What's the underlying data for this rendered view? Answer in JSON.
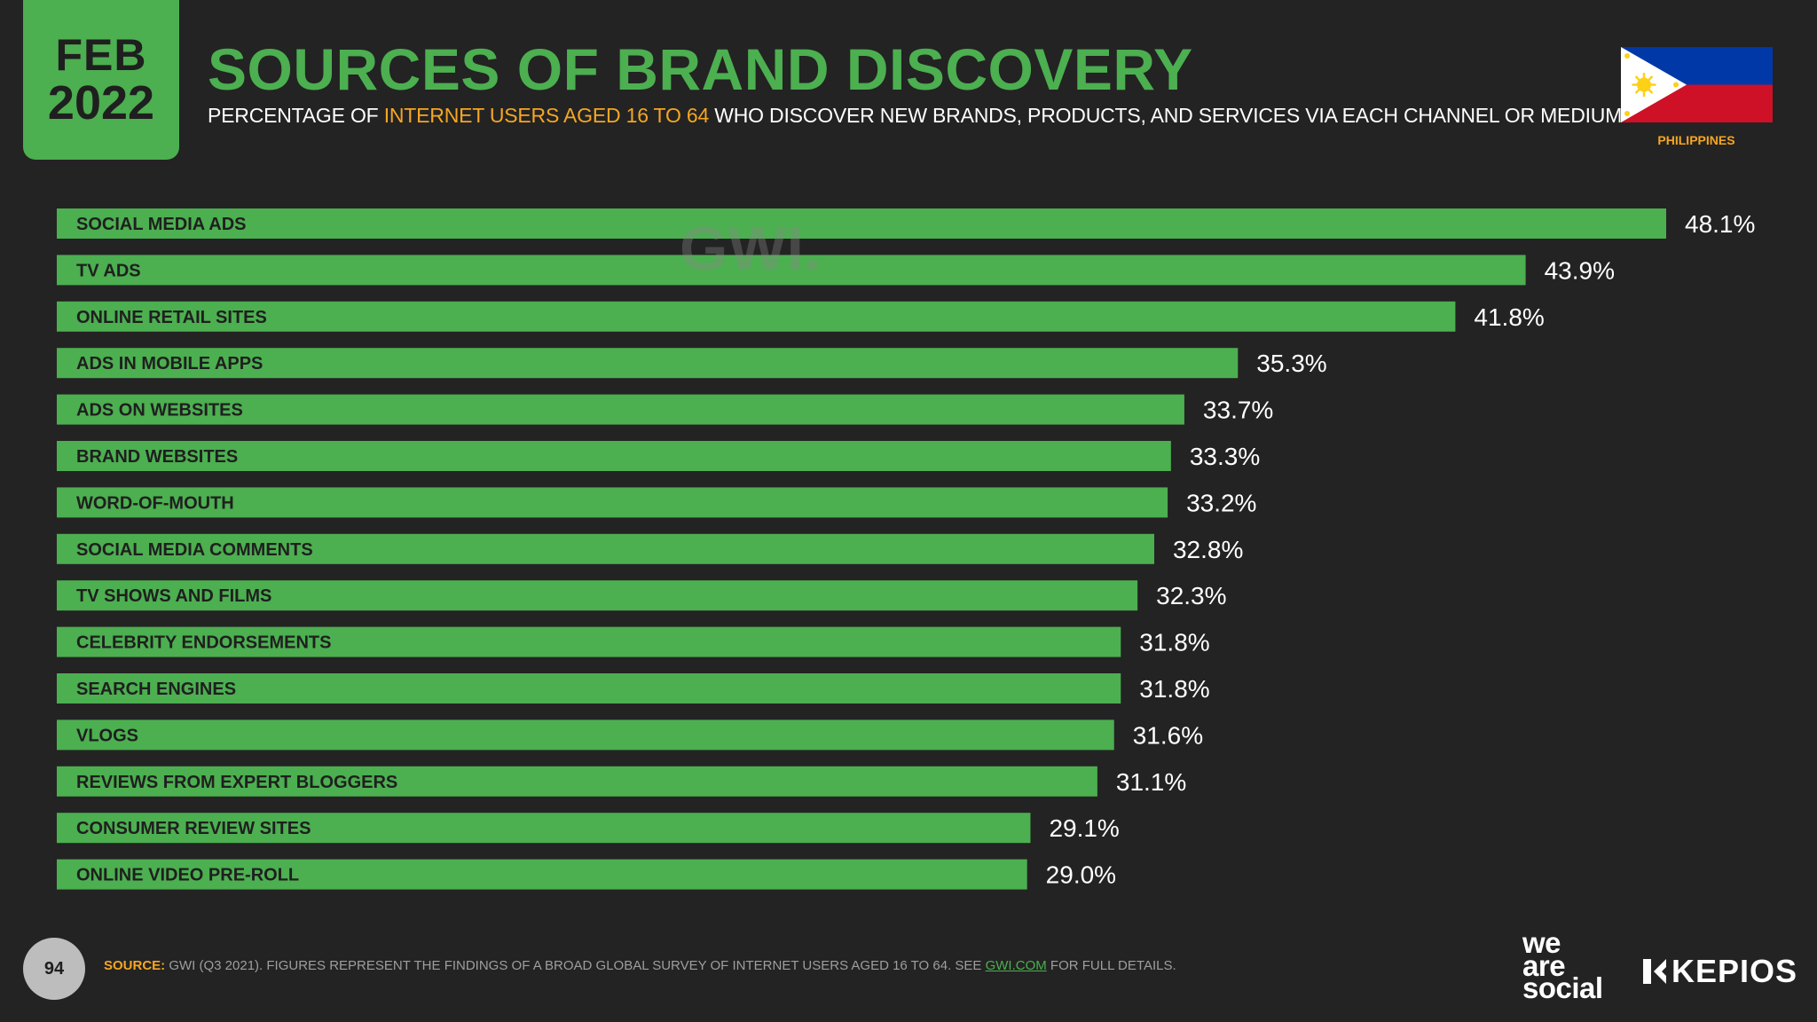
{
  "header": {
    "month": "FEB",
    "year": "2022",
    "title": "SOURCES OF BRAND DISCOVERY",
    "subtitle_pre": "PERCENTAGE OF ",
    "subtitle_highlight": "INTERNET USERS AGED 16 TO 64",
    "subtitle_post": " WHO DISCOVER NEW BRANDS, PRODUCTS, AND SERVICES VIA EACH CHANNEL OR MEDIUM",
    "country": "PHILIPPINES"
  },
  "watermark": "GWI.",
  "colors": {
    "background": "#232323",
    "accent_green": "#4caf50",
    "highlight_orange": "#f5a623",
    "bar_label": "#1f1f1f",
    "value_label": "#ffffff"
  },
  "chart_data": {
    "type": "bar",
    "orientation": "horizontal",
    "title": "SOURCES OF BRAND DISCOVERY",
    "xlabel": "",
    "ylabel": "",
    "xlim": [
      0,
      48.1
    ],
    "unit": "%",
    "categories": [
      "SOCIAL MEDIA ADS",
      "TV ADS",
      "ONLINE RETAIL SITES",
      "ADS IN MOBILE APPS",
      "ADS ON WEBSITES",
      "BRAND WEBSITES",
      "WORD-OF-MOUTH",
      "SOCIAL MEDIA COMMENTS",
      "TV SHOWS AND FILMS",
      "CELEBRITY ENDORSEMENTS",
      "SEARCH ENGINES",
      "VLOGS",
      "REVIEWS FROM EXPERT BLOGGERS",
      "CONSUMER REVIEW SITES",
      "ONLINE VIDEO PRE-ROLL"
    ],
    "values": [
      48.1,
      43.9,
      41.8,
      35.3,
      33.7,
      33.3,
      33.2,
      32.8,
      32.3,
      31.8,
      31.8,
      31.6,
      31.1,
      29.1,
      29.0
    ],
    "value_labels": [
      "48.1%",
      "43.9%",
      "41.8%",
      "35.3%",
      "33.7%",
      "33.3%",
      "33.2%",
      "32.8%",
      "32.3%",
      "31.8%",
      "31.8%",
      "31.6%",
      "31.1%",
      "29.1%",
      "29.0%"
    ],
    "grid": false,
    "legend": "none"
  },
  "footer": {
    "page_number": "94",
    "source_label": "SOURCE:",
    "source_text": " GWI (Q3 2021). FIGURES REPRESENT THE FINDINGS OF A BROAD GLOBAL SURVEY OF INTERNET USERS AGED 16 TO 64. SEE ",
    "source_link": "GWI.COM",
    "source_tail": " FOR FULL DETAILS.",
    "logo_we": "we",
    "logo_are": "are",
    "logo_social": "social",
    "logo_kepios": "KEPIOS"
  }
}
